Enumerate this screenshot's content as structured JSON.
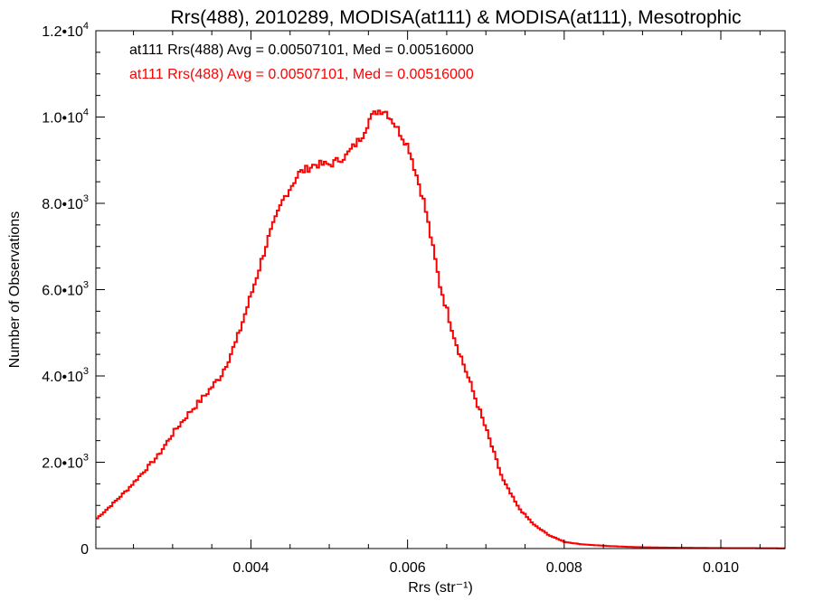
{
  "chart_data": {
    "type": "line",
    "title": "Rrs(488), 2010289, MODISA(at111) & MODISA(at111), Mesotrophic",
    "xlabel": "Rrs (str⁻¹)",
    "ylabel": "Number of Observations",
    "xlim": [
      0.00202,
      0.01082
    ],
    "ylim": [
      0,
      12000
    ],
    "grid": false,
    "x_ticks": [
      {
        "value": 0.004,
        "label": "0.004"
      },
      {
        "value": 0.006,
        "label": "0.006"
      },
      {
        "value": 0.008,
        "label": "0.008"
      },
      {
        "value": 0.01,
        "label": "0.010"
      }
    ],
    "y_ticks": [
      {
        "value": 0,
        "mantissa": "0",
        "exponent": ""
      },
      {
        "value": 2000,
        "mantissa": "2.0•10",
        "exponent": "3"
      },
      {
        "value": 4000,
        "mantissa": "4.0•10",
        "exponent": "3"
      },
      {
        "value": 6000,
        "mantissa": "6.0•10",
        "exponent": "3"
      },
      {
        "value": 8000,
        "mantissa": "8.0•10",
        "exponent": "3"
      },
      {
        "value": 10000,
        "mantissa": "1.0•10",
        "exponent": "4"
      },
      {
        "value": 12000,
        "mantissa": "1.2•10",
        "exponent": "4"
      }
    ],
    "annotations": [
      {
        "text": "at111 Rrs(488) Avg = 0.00507101, Med = 0.00516000",
        "color": "#000000"
      },
      {
        "text": "at111 Rrs(488) Avg = 0.00507101, Med = 0.00516000",
        "color": "#ff0000"
      }
    ],
    "series": [
      {
        "color": "#ff0000",
        "x": [
          0.00202,
          0.0022,
          0.0024,
          0.0026,
          0.0028,
          0.003,
          0.0032,
          0.0034,
          0.0036,
          0.0038,
          0.004,
          0.0042,
          0.0044,
          0.0046,
          0.0048,
          0.005,
          0.0052,
          0.0054,
          0.0055,
          0.0056,
          0.0057,
          0.0058,
          0.006,
          0.0062,
          0.0064,
          0.0066,
          0.0068,
          0.007,
          0.0072,
          0.0074,
          0.0076,
          0.0078,
          0.008,
          0.0082,
          0.0084,
          0.0086,
          0.0088,
          0.009,
          0.0094,
          0.01,
          0.0106,
          0.01082
        ],
        "y": [
          700,
          1000,
          1350,
          1750,
          2150,
          2700,
          3150,
          3550,
          4000,
          4800,
          5950,
          7150,
          8100,
          8700,
          8900,
          8900,
          9100,
          9550,
          9950,
          10150,
          10150,
          9900,
          9300,
          8000,
          6100,
          4800,
          3750,
          2700,
          1600,
          950,
          550,
          300,
          150,
          100,
          75,
          55,
          40,
          30,
          20,
          12,
          8,
          5
        ]
      }
    ]
  }
}
